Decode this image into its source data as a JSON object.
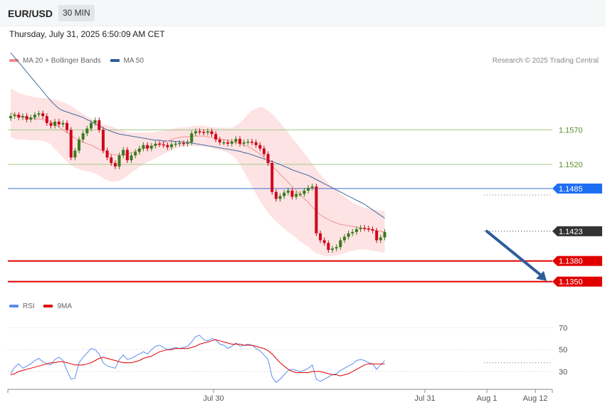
{
  "header": {
    "symbol": "EUR/USD",
    "timeframe": "30 MIN"
  },
  "timestamp": "Thursday, July 31, 2025 6:50:09 AM CET",
  "credit": "Research © 2025 Trading Central",
  "legend_main": [
    {
      "label": "MA 20 + Bollinger Bands",
      "color": "#f28b8b"
    },
    {
      "label": "MA 50",
      "color": "#2f5d9a"
    }
  ],
  "legend_rsi": [
    {
      "label": "RSI",
      "color": "#5b8def"
    },
    {
      "label": "9MA",
      "color": "#e00000"
    }
  ],
  "colors": {
    "up_candle": "#3a7a1e",
    "down_candle": "#d0021b",
    "band_fill": "#fde0e0",
    "ma20": "#f08a8a",
    "ma50": "#2f5d9a",
    "resistance": "#a4c98a",
    "pivot": "#3b6fd8",
    "support": "#e00000",
    "current": "#333333",
    "arrow": "#2f5d9a"
  },
  "chart_data": [
    {
      "type": "candlestick",
      "title": "EUR/USD 30 MIN",
      "x_tick_labels": [
        "Jul 30",
        "Jul 31",
        "Aug 1",
        "Aug 12"
      ],
      "ylim": [
        1.133,
        1.165
      ],
      "levels": [
        {
          "value": 1.157,
          "label": "1.1570",
          "kind": "resistance"
        },
        {
          "value": 1.152,
          "label": "1.1520",
          "kind": "resistance"
        },
        {
          "value": 1.1485,
          "label": "1.1485",
          "kind": "pivot"
        },
        {
          "value": 1.1423,
          "label": "1.1423",
          "kind": "current"
        },
        {
          "value": 1.138,
          "label": "1.1380",
          "kind": "support"
        },
        {
          "value": 1.135,
          "label": "1.1350",
          "kind": "support"
        }
      ],
      "forecast_arrow": {
        "from": 1.1423,
        "to": 1.135,
        "direction": "down"
      },
      "closes": [
        1.159,
        1.1592,
        1.1588,
        1.159,
        1.1585,
        1.1588,
        1.1592,
        1.1594,
        1.159,
        1.158,
        1.1576,
        1.1582,
        1.1578,
        1.158,
        1.157,
        1.153,
        1.154,
        1.1556,
        1.1565,
        1.1572,
        1.158,
        1.1584,
        1.157,
        1.154,
        1.153,
        1.1522,
        1.1517,
        1.1533,
        1.1541,
        1.1526,
        1.1533,
        1.1538,
        1.1543,
        1.1548,
        1.1543,
        1.1547,
        1.155,
        1.1549,
        1.1548,
        1.1545,
        1.1549,
        1.155,
        1.1551,
        1.155,
        1.1552,
        1.1565,
        1.1568,
        1.1567,
        1.1566,
        1.1568,
        1.1564,
        1.1556,
        1.1552,
        1.1552,
        1.155,
        1.1553,
        1.1557,
        1.155,
        1.1552,
        1.1553,
        1.1552,
        1.1548,
        1.1543,
        1.1535,
        1.1522,
        1.148,
        1.147,
        1.1474,
        1.1479,
        1.1482,
        1.1473,
        1.1477,
        1.1477,
        1.1482,
        1.1486,
        1.1488,
        1.142,
        1.141,
        1.1406,
        1.1396,
        1.1398,
        1.14,
        1.141,
        1.1415,
        1.142,
        1.1422,
        1.1426,
        1.1428,
        1.1427,
        1.1426,
        1.1424,
        1.141,
        1.1414,
        1.1422
      ],
      "ma20": [
        1.1595,
        1.1592,
        1.159,
        1.1589,
        1.1588,
        1.1587,
        1.1586,
        1.1586,
        1.1585,
        1.1584,
        1.1582,
        1.1578,
        1.1574,
        1.157,
        1.1566,
        1.1562,
        1.1558,
        1.1555,
        1.1552,
        1.155,
        1.1548,
        1.1545,
        1.1542,
        1.1539,
        1.1537,
        1.1535,
        1.1534,
        1.1533,
        1.1534,
        1.1535,
        1.1537,
        1.1539,
        1.1541,
        1.1543,
        1.1545,
        1.1546,
        1.1548,
        1.155,
        1.1552,
        1.1554,
        1.1556,
        1.1558,
        1.1559,
        1.156,
        1.156,
        1.1561,
        1.1561,
        1.1561,
        1.1561,
        1.156,
        1.1559,
        1.1558,
        1.1557,
        1.1556,
        1.1555,
        1.1553,
        1.1552,
        1.155,
        1.1548,
        1.1546,
        1.1543,
        1.1539,
        1.1535,
        1.153,
        1.1524,
        1.1518,
        1.1512,
        1.1506,
        1.15,
        1.1494,
        1.1488,
        1.1482,
        1.1476,
        1.147,
        1.1465,
        1.1458,
        1.1452,
        1.1447,
        1.1443,
        1.144,
        1.1437,
        1.1435,
        1.1433,
        1.1432,
        1.1431,
        1.143,
        1.1429,
        1.1428,
        1.1427,
        1.1426,
        1.1425,
        1.1424,
        1.1423,
        1.1422
      ],
      "ma50": [
        1.1682,
        1.1675,
        1.1668,
        1.1661,
        1.1654,
        1.1647,
        1.164,
        1.1633,
        1.1626,
        1.1619,
        1.1612,
        1.1606,
        1.1601,
        1.1598,
        1.1596,
        1.1594,
        1.1592,
        1.159,
        1.1588,
        1.1585,
        1.1582,
        1.1579,
        1.1576,
        1.1573,
        1.157,
        1.1568,
        1.1566,
        1.1564,
        1.1563,
        1.1562,
        1.1561,
        1.156,
        1.1559,
        1.1558,
        1.1557,
        1.1556,
        1.1555,
        1.1555,
        1.1554,
        1.1554,
        1.1554,
        1.1553,
        1.1553,
        1.1552,
        1.1552,
        1.1551,
        1.155,
        1.1549,
        1.1548,
        1.1547,
        1.1546,
        1.1545,
        1.1544,
        1.1543,
        1.1542,
        1.1541,
        1.154,
        1.1539,
        1.1537,
        1.1536,
        1.1534,
        1.1532,
        1.153,
        1.1528,
        1.1526,
        1.1524,
        1.1522,
        1.152,
        1.1517,
        1.1515,
        1.1512,
        1.151,
        1.1508,
        1.1506,
        1.1504,
        1.1501,
        1.1498,
        1.1495,
        1.1492,
        1.1489,
        1.1486,
        1.1483,
        1.148,
        1.1477,
        1.1474,
        1.1471,
        1.1468,
        1.1465,
        1.1462,
        1.1458,
        1.1454,
        1.145,
        1.1446,
        1.1442
      ],
      "bb_width": [
        0.0035,
        0.0035,
        0.0034,
        0.0033,
        0.0032,
        0.0032,
        0.0031,
        0.0031,
        0.0031,
        0.0032,
        0.0033,
        0.0036,
        0.0038,
        0.004,
        0.0042,
        0.0043,
        0.0043,
        0.0042,
        0.0041,
        0.004,
        0.0039,
        0.0038,
        0.0038,
        0.0039,
        0.004,
        0.004,
        0.0039,
        0.0037,
        0.0035,
        0.0032,
        0.0029,
        0.0027,
        0.0025,
        0.0023,
        0.0021,
        0.002,
        0.0019,
        0.0018,
        0.0017,
        0.0016,
        0.0015,
        0.0015,
        0.0014,
        0.0014,
        0.0014,
        0.0014,
        0.0015,
        0.0015,
        0.0015,
        0.0015,
        0.0015,
        0.0016,
        0.0016,
        0.0017,
        0.0018,
        0.002,
        0.0024,
        0.003,
        0.0038,
        0.0047,
        0.0055,
        0.0062,
        0.0068,
        0.0072,
        0.0074,
        0.0075,
        0.0075,
        0.0074,
        0.0073,
        0.0072,
        0.007,
        0.0069,
        0.0068,
        0.0066,
        0.0064,
        0.0063,
        0.0061,
        0.0058,
        0.0056,
        0.0053,
        0.005,
        0.0047,
        0.0044,
        0.0041,
        0.0038,
        0.0035,
        0.0033,
        0.0031,
        0.003,
        0.003,
        0.003,
        0.003,
        0.003,
        0.003
      ]
    },
    {
      "type": "line",
      "title": "RSI",
      "y_tick_labels": [
        "70",
        "50",
        "30"
      ],
      "ylim": [
        15,
        80
      ],
      "guides": [
        70,
        50,
        30
      ],
      "series": [
        {
          "name": "RSI",
          "values": [
            28,
            34,
            37,
            33,
            35,
            37,
            40,
            42,
            39,
            37,
            36,
            41,
            43,
            40,
            31,
            23,
            24,
            38,
            43,
            47,
            51,
            50,
            46,
            38,
            35,
            34,
            33,
            41,
            45,
            41,
            42,
            44,
            46,
            48,
            46,
            50,
            53,
            54,
            52,
            50,
            51,
            52,
            51,
            52,
            53,
            57,
            62,
            63,
            59,
            58,
            60,
            59,
            55,
            54,
            51,
            53,
            56,
            53,
            54,
            55,
            54,
            51,
            49,
            45,
            41,
            25,
            20,
            23,
            27,
            31,
            32,
            31,
            30,
            31,
            33,
            36,
            23,
            21,
            23,
            25,
            27,
            28,
            31,
            33,
            35,
            37,
            40,
            41,
            40,
            38,
            37,
            32,
            36,
            40
          ]
        },
        {
          "name": "9MA",
          "values": [
            27,
            28,
            30,
            31,
            32,
            33,
            34,
            35,
            36,
            37,
            38,
            38,
            39,
            39,
            38,
            37,
            36,
            36,
            36,
            37,
            38,
            40,
            42,
            43,
            42,
            41,
            40,
            39,
            38,
            38,
            38,
            39,
            40,
            42,
            43,
            44,
            46,
            48,
            49,
            50,
            50,
            51,
            51,
            51,
            51,
            52,
            53,
            55,
            56,
            57,
            58,
            59,
            58,
            57,
            56,
            55,
            55,
            55,
            54,
            54,
            54,
            53,
            52,
            51,
            49,
            46,
            42,
            38,
            35,
            32,
            30,
            29,
            29,
            29,
            29,
            30,
            30,
            30,
            29,
            28,
            27,
            27,
            26,
            27,
            28,
            30,
            32,
            34,
            36,
            37,
            37,
            37,
            37,
            37
          ]
        }
      ]
    }
  ]
}
